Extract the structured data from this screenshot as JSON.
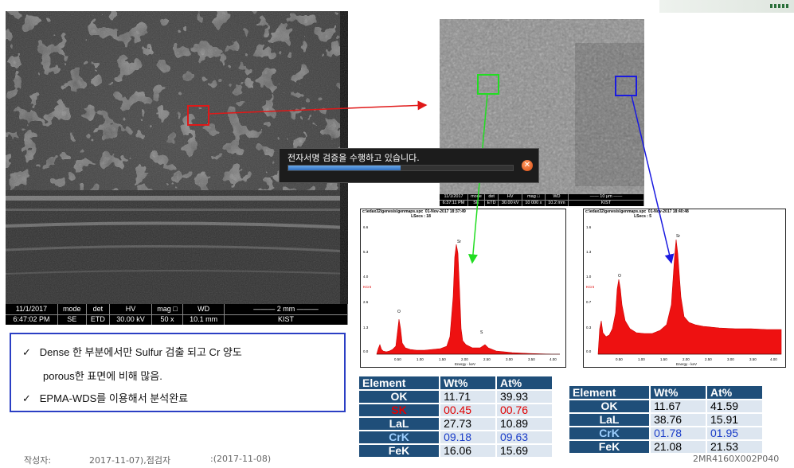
{
  "sem_large": {
    "date": "11/1/2017",
    "time": "6:47:02 PM",
    "mode_h": "mode",
    "mode_v": "SE",
    "det_h": "det",
    "det_v": "ETD",
    "hv_h": "HV",
    "hv_v": "30.00 kV",
    "mag_h": "mag □",
    "mag_v": "50 x",
    "wd_h": "WD",
    "wd_v": "10.1 mm",
    "scale": "2 mm",
    "lab": "KIST"
  },
  "sem_small": {
    "date": "11/1/2017",
    "time": "6:37:11 PM",
    "mode_h": "mode",
    "mode_v": "SE",
    "det_h": "det",
    "det_v": "ETD",
    "hv_h": "HV",
    "hv_v": "30.00 kV",
    "mag_h": "mag □",
    "mag_v": "10 000 x",
    "wd_h": "WD",
    "wd_v": "10.2 mm",
    "scale": "10 μm",
    "lab": "KIST"
  },
  "progress_dialog": {
    "message": "전자서명 검증을 수행하고 있습니다.",
    "progress": 0.5
  },
  "spectrum_left": {
    "title": "c:\\edax32\\genesis\\genmaps.spc  01-Nov-2017 18:37:49\n                                            LSecs : 18",
    "xlabel": "Energy - keV",
    "ylabel": "KCnt",
    "yticks": [
      "6.6",
      "5.3",
      "4.0",
      "2.6",
      "1.3",
      "0.0"
    ],
    "xticks": [
      "0.50",
      "1.00",
      "1.50",
      "2.00",
      "2.50",
      "3.00",
      "3.50",
      "4.00"
    ],
    "peaks": [
      "O",
      "Sr",
      "S"
    ]
  },
  "spectrum_right": {
    "title": "c:\\edax32\\genesis\\genmaps.spc  01-Nov-2017 18:40:48\n                                            LSecs : 5",
    "xlabel": "Energy - keV",
    "ylabel": "KCnt",
    "yticks": [
      "1.6",
      "1.3",
      "1.0",
      "0.7",
      "0.3",
      "0.0"
    ],
    "xticks": [
      "0.50",
      "1.00",
      "1.50",
      "2.00",
      "2.50",
      "3.00",
      "3.50",
      "4.00"
    ],
    "peaks": [
      "O",
      "Sr"
    ]
  },
  "table_left": {
    "headers": [
      "Element",
      "Wt%",
      "At%"
    ],
    "rows": [
      {
        "el": "OK",
        "wt": "11.71",
        "at": "39.93"
      },
      {
        "el": "SK",
        "wt": "00.45",
        "at": "00.76"
      },
      {
        "el": "LaL",
        "wt": "27.73",
        "at": "10.89"
      },
      {
        "el": "CrK",
        "wt": "09.18",
        "at": "09.63"
      },
      {
        "el": "FeK",
        "wt": "16.06",
        "at": "15.69"
      }
    ]
  },
  "table_right": {
    "headers": [
      "Element",
      "Wt%",
      "At%"
    ],
    "rows": [
      {
        "el": "OK",
        "wt": "11.67",
        "at": "41.59"
      },
      {
        "el": "LaL",
        "wt": "38.76",
        "at": "15.91"
      },
      {
        "el": "CrK",
        "wt": "01.78",
        "at": "01.95"
      },
      {
        "el": "FeK",
        "wt": "21.08",
        "at": "21.53"
      }
    ]
  },
  "note": {
    "line1": "Dense 한 부분에서만 Sulfur 검출 되고 Cr 양도",
    "line2": "porous한 표면에 비해 많음.",
    "line3": "EPMA-WDS를 이용해서 분석완료"
  },
  "footer": {
    "author": "작성자:",
    "date1": "2017-11-07),점검자",
    "date2": ":(2017-11-08)",
    "doc_code": "2MR4160X002P040"
  },
  "colors": {
    "red_box": "#e01818",
    "green_box": "#22dd22",
    "blue_box": "#1a1ae0",
    "table_header": "#1f4e79",
    "note_border": "#2b3fc4"
  }
}
